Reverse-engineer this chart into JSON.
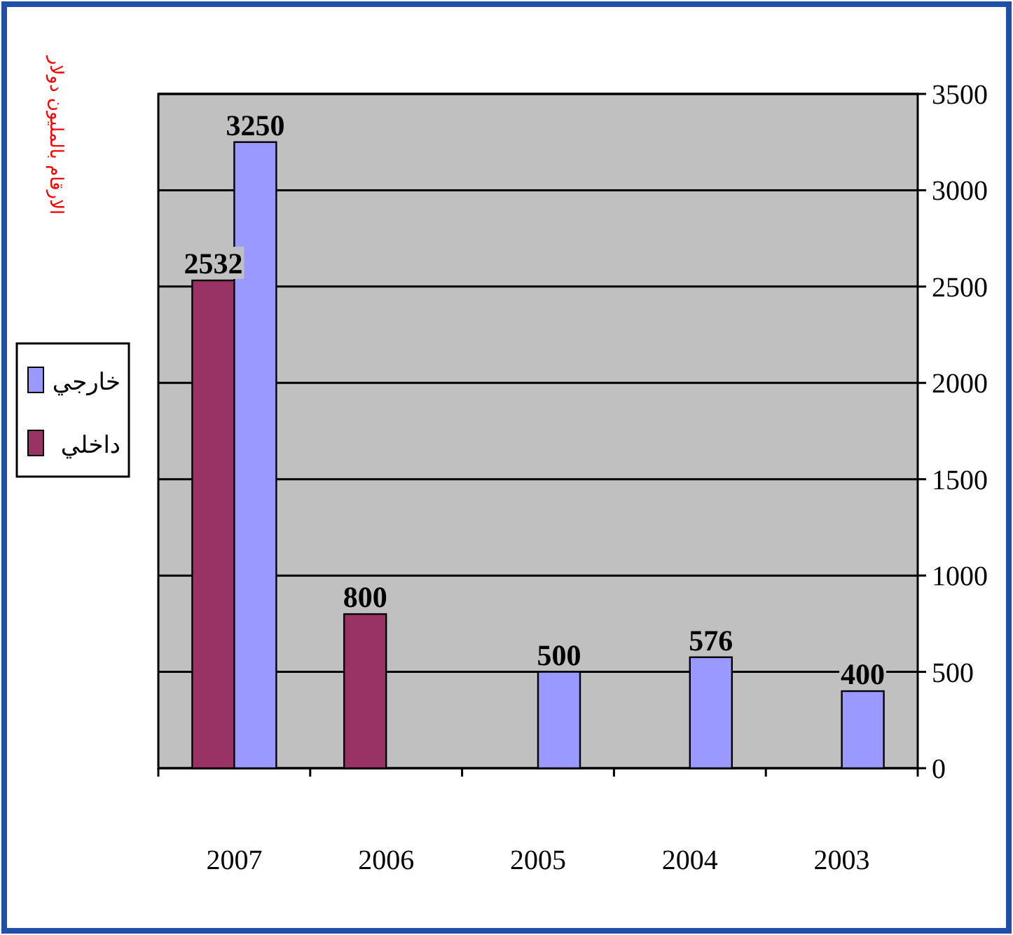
{
  "chart_data": {
    "type": "bar",
    "annotations": [
      "الارقام بالمليون دولار"
    ],
    "categories": [
      "2007",
      "2006",
      "2005",
      "2004",
      "2003"
    ],
    "series": [
      {
        "name": "داخلي",
        "color": "#993366",
        "values": [
          2532,
          800,
          null,
          null,
          null
        ]
      },
      {
        "name": "خارجي",
        "color": "#9999ff",
        "values": [
          3250,
          null,
          500,
          576,
          400
        ]
      }
    ],
    "ylim": [
      0,
      3500
    ],
    "yticks": [
      0,
      500,
      1000,
      1500,
      2000,
      2500,
      3000,
      3500
    ],
    "grid": "y",
    "legend": "left",
    "data_labels": true
  }
}
